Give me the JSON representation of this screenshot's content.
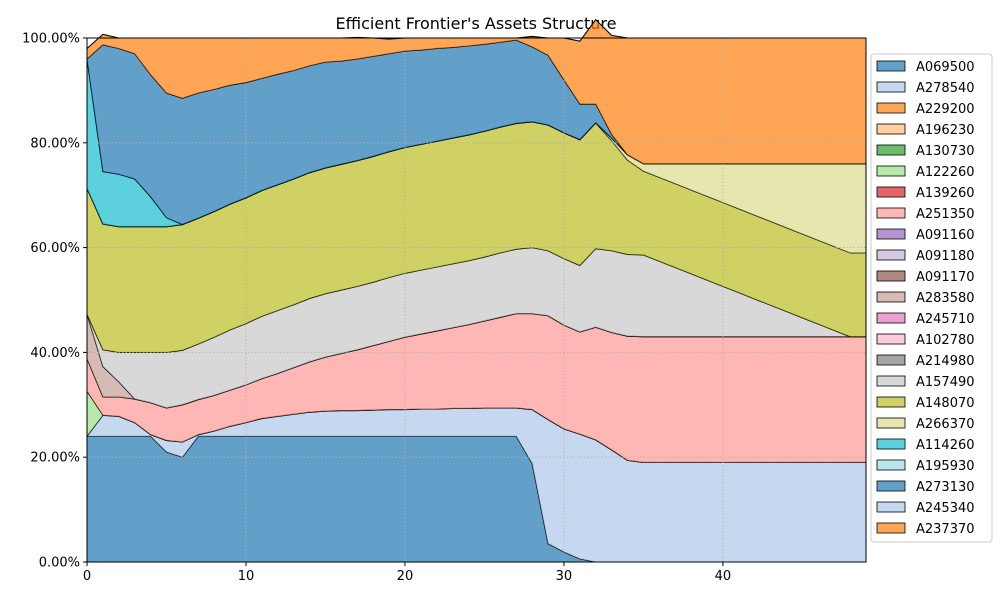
{
  "chart_data": {
    "type": "area",
    "stacked": true,
    "title": "Efficient Frontier's Assets Structure",
    "xlabel": "",
    "ylabel": "",
    "xlim": [
      0,
      49
    ],
    "ylim": [
      0,
      100
    ],
    "x_ticks": [
      0,
      10,
      20,
      30,
      40
    ],
    "y_ticks": [
      0,
      20,
      40,
      60,
      80,
      100
    ],
    "y_tick_labels": [
      "0.00%",
      "20.00%",
      "40.00%",
      "60.00%",
      "80.00%",
      "100.00%"
    ],
    "grid": true,
    "legend_position": "right",
    "x": [
      0,
      1,
      2,
      3,
      4,
      5,
      6,
      7,
      8,
      9,
      10,
      11,
      12,
      13,
      14,
      15,
      16,
      17,
      18,
      19,
      20,
      21,
      22,
      23,
      24,
      25,
      26,
      27,
      28,
      29,
      30,
      31,
      32,
      33,
      34,
      35,
      36,
      37,
      38,
      39,
      40,
      41,
      42,
      43,
      44,
      45,
      46,
      47,
      48,
      49
    ],
    "series": [
      {
        "name": "A069500",
        "color": "#1f77b4",
        "values": [
          24,
          24,
          24,
          24,
          24,
          21,
          20,
          24,
          24,
          24,
          24,
          24,
          24,
          24,
          24,
          24,
          24,
          24,
          24,
          24,
          24,
          24,
          24,
          24,
          24,
          24,
          24,
          24,
          18.8,
          3.5,
          1.9,
          0.6,
          0,
          0,
          0,
          0,
          0,
          0,
          0,
          0,
          0,
          0,
          0,
          0,
          0,
          0,
          0,
          0,
          0,
          0
        ]
      },
      {
        "name": "A278540",
        "color": "#aec7e8",
        "values": [
          0,
          4,
          3.8,
          2.6,
          0.3,
          2.2,
          2.9,
          0.3,
          1,
          1.9,
          2.6,
          3.4,
          3.8,
          4.2,
          4.6,
          4.8,
          4.9,
          4.9,
          5,
          5.1,
          5.1,
          5.2,
          5.2,
          5.3,
          5.3,
          5.4,
          5.4,
          5.4,
          10.3,
          23.7,
          23.5,
          23.8,
          23.3,
          21.4,
          19.4,
          19,
          19,
          19,
          19,
          19,
          19,
          19,
          19,
          19,
          19,
          19,
          19,
          19,
          19,
          19
        ]
      },
      {
        "name": "A229200",
        "color": "#ff7f0e",
        "values": [
          0,
          0,
          0,
          0,
          0,
          0,
          0,
          0,
          0,
          0,
          0,
          0,
          0,
          0,
          0,
          0,
          0,
          0,
          0,
          0,
          0,
          0,
          0,
          0,
          0,
          0,
          0,
          0,
          0,
          0,
          0,
          0,
          0,
          0,
          0,
          0,
          0,
          0,
          0,
          0,
          0,
          0,
          0,
          0,
          0,
          0,
          0,
          0,
          0,
          0
        ]
      },
      {
        "name": "A196230",
        "color": "#ffbb78",
        "values": [
          0,
          0,
          0,
          0,
          0,
          0,
          0,
          0,
          0,
          0,
          0,
          0,
          0,
          0,
          0,
          0,
          0,
          0,
          0,
          0,
          0,
          0,
          0,
          0,
          0,
          0,
          0,
          0,
          0,
          0,
          0,
          0,
          0,
          0,
          0,
          0,
          0,
          0,
          0,
          0,
          0,
          0,
          0,
          0,
          0,
          0,
          0,
          0,
          0,
          0
        ]
      },
      {
        "name": "A130730",
        "color": "#2ca02c",
        "values": [
          0,
          0,
          0,
          0,
          0,
          0,
          0,
          0,
          0,
          0,
          0,
          0,
          0,
          0,
          0,
          0,
          0,
          0,
          0,
          0,
          0,
          0,
          0,
          0,
          0,
          0,
          0,
          0,
          0,
          0,
          0,
          0,
          0,
          0,
          0,
          0,
          0,
          0,
          0,
          0,
          0,
          0,
          0,
          0,
          0,
          0,
          0,
          0,
          0,
          0
        ]
      },
      {
        "name": "A122260",
        "color": "#98df8a",
        "values": [
          8.6,
          0,
          0,
          0,
          0,
          0,
          0,
          0,
          0,
          0,
          0,
          0,
          0,
          0,
          0,
          0,
          0,
          0,
          0,
          0,
          0,
          0,
          0,
          0,
          0,
          0,
          0,
          0,
          0,
          0,
          0,
          0,
          0,
          0,
          0,
          0,
          0,
          0,
          0,
          0,
          0,
          0,
          0,
          0,
          0,
          0,
          0,
          0,
          0,
          0
        ]
      },
      {
        "name": "A139260",
        "color": "#d62728",
        "values": [
          0,
          0,
          0,
          0,
          0,
          0,
          0,
          0,
          0,
          0,
          0,
          0,
          0,
          0,
          0,
          0,
          0,
          0,
          0,
          0,
          0,
          0,
          0,
          0,
          0,
          0,
          0,
          0,
          0,
          0,
          0,
          0,
          0,
          0,
          0,
          0,
          0,
          0,
          0,
          0,
          0,
          0,
          0,
          0,
          0,
          0,
          0,
          0,
          0,
          0
        ]
      },
      {
        "name": "A251350",
        "color": "#ff9896",
        "values": [
          6.2,
          3.5,
          3.7,
          4.5,
          6.1,
          6.2,
          7.1,
          6.7,
          6.8,
          6.9,
          7.2,
          7.6,
          8.2,
          8.9,
          9.6,
          10.3,
          10.9,
          11.6,
          12.3,
          13,
          13.8,
          14.3,
          14.9,
          15.4,
          16,
          16.6,
          17.3,
          18,
          18.3,
          19.8,
          19.8,
          19.5,
          21.5,
          22.4,
          23.7,
          24,
          24,
          24,
          24,
          24,
          24,
          24,
          24,
          24,
          24,
          24,
          24,
          24,
          24,
          24
        ]
      },
      {
        "name": "A091160",
        "color": "#9467bd",
        "values": [
          0,
          0,
          0,
          0,
          0,
          0,
          0,
          0,
          0,
          0,
          0,
          0,
          0,
          0,
          0,
          0,
          0,
          0,
          0,
          0,
          0,
          0,
          0,
          0,
          0,
          0,
          0,
          0,
          0,
          0,
          0,
          0,
          0,
          0,
          0,
          0,
          0,
          0,
          0,
          0,
          0,
          0,
          0,
          0,
          0,
          0,
          0,
          0,
          0,
          0
        ]
      },
      {
        "name": "A091180",
        "color": "#c5b0d5",
        "values": [
          0,
          0,
          0,
          0,
          0,
          0,
          0,
          0,
          0,
          0,
          0,
          0,
          0,
          0,
          0,
          0,
          0,
          0,
          0,
          0,
          0,
          0,
          0,
          0,
          0,
          0,
          0,
          0,
          0,
          0,
          0,
          0,
          0,
          0,
          0,
          0,
          0,
          0,
          0,
          0,
          0,
          0,
          0,
          0,
          0,
          0,
          0,
          0,
          0,
          0
        ]
      },
      {
        "name": "A091170",
        "color": "#8c564b",
        "values": [
          0,
          0,
          0,
          0,
          0,
          0,
          0,
          0,
          0,
          0,
          0,
          0,
          0,
          0,
          0,
          0,
          0,
          0,
          0,
          0,
          0,
          0,
          0,
          0,
          0,
          0,
          0,
          0,
          0,
          0,
          0,
          0,
          0,
          0,
          0,
          0,
          0,
          0,
          0,
          0,
          0,
          0,
          0,
          0,
          0,
          0,
          0,
          0,
          0,
          0
        ]
      },
      {
        "name": "A283580",
        "color": "#c49c94",
        "values": [
          8.5,
          5.8,
          2.9,
          0,
          0,
          0,
          0,
          0,
          0,
          0,
          0,
          0,
          0,
          0,
          0,
          0,
          0,
          0,
          0,
          0,
          0,
          0,
          0,
          0,
          0,
          0,
          0,
          0,
          0,
          0,
          0,
          0,
          0,
          0,
          0,
          0,
          0,
          0,
          0,
          0,
          0,
          0,
          0,
          0,
          0,
          0,
          0,
          0,
          0,
          0
        ]
      },
      {
        "name": "A245710",
        "color": "#e377c2",
        "values": [
          0,
          0,
          0,
          0,
          0,
          0,
          0,
          0,
          0,
          0,
          0,
          0,
          0,
          0,
          0,
          0,
          0,
          0,
          0,
          0,
          0,
          0,
          0,
          0,
          0,
          0,
          0,
          0,
          0,
          0,
          0,
          0,
          0,
          0,
          0,
          0,
          0,
          0,
          0,
          0,
          0,
          0,
          0,
          0,
          0,
          0,
          0,
          0,
          0,
          0
        ]
      },
      {
        "name": "A102780",
        "color": "#f7b6d2",
        "values": [
          0,
          0,
          0,
          0,
          0,
          0,
          0,
          0,
          0,
          0,
          0,
          0,
          0,
          0,
          0,
          0,
          0,
          0,
          0,
          0,
          0,
          0,
          0,
          0,
          0,
          0,
          0,
          0,
          0,
          0,
          0,
          0,
          0,
          0,
          0,
          0,
          0,
          0,
          0,
          0,
          0,
          0,
          0,
          0,
          0,
          0,
          0,
          0,
          0,
          0
        ]
      },
      {
        "name": "A214980",
        "color": "#7f7f7f",
        "values": [
          0,
          0,
          0,
          0,
          0,
          0,
          0,
          0,
          0,
          0,
          0,
          0,
          0,
          0,
          0,
          0,
          0,
          0,
          0,
          0,
          0,
          0,
          0,
          0,
          0,
          0,
          0,
          0,
          0,
          0,
          0,
          0,
          0,
          0,
          0,
          0,
          0,
          0,
          0,
          0,
          0,
          0,
          0,
          0,
          0,
          0,
          0,
          0,
          0,
          0
        ]
      },
      {
        "name": "A157490",
        "color": "#c7c7c7",
        "values": [
          0,
          3.2,
          5.6,
          8.9,
          9.6,
          10.6,
          10.4,
          10.6,
          11.1,
          11.5,
          11.7,
          11.9,
          12,
          12,
          12.1,
          12.1,
          12.1,
          12.1,
          12.1,
          12.2,
          12.2,
          12.2,
          12.2,
          12.2,
          12.2,
          12.2,
          12.3,
          12.3,
          12.6,
          12.4,
          12.7,
          12.7,
          15,
          15.6,
          15.6,
          15.6,
          14.4,
          13.2,
          12,
          10.8,
          9.6,
          8.4,
          7.2,
          6,
          4.8,
          3.6,
          2.4,
          1.2,
          0,
          0
        ]
      },
      {
        "name": "A148070",
        "color": "#bcbd22",
        "values": [
          24,
          24,
          24,
          24,
          24,
          24,
          24,
          24,
          24,
          24,
          24,
          24,
          24,
          24,
          24,
          24,
          24,
          24,
          24,
          24,
          24,
          24,
          24,
          24,
          24,
          24,
          24,
          24,
          24,
          24,
          24,
          24,
          24,
          21,
          18,
          16,
          16,
          16,
          16,
          16,
          16,
          16,
          16,
          16,
          16,
          16,
          16,
          16,
          16,
          16
        ]
      },
      {
        "name": "A266370",
        "color": "#dbdb8d",
        "values": [
          0,
          0,
          0,
          0,
          0,
          0,
          0,
          0,
          0,
          0,
          0,
          0,
          0,
          0,
          0,
          0,
          0,
          0,
          0,
          0,
          0,
          0,
          0,
          0,
          0,
          0,
          0,
          0,
          0,
          0,
          0,
          0,
          0,
          0.5,
          1,
          1.4,
          2.6,
          3.8,
          5,
          6.2,
          7.4,
          8.6,
          9.8,
          11,
          12.2,
          13.4,
          14.6,
          15.8,
          17,
          17
        ]
      },
      {
        "name": "A114260",
        "color": "#17becf",
        "values": [
          24.7,
          10,
          10,
          9.1,
          5.7,
          1.7,
          0,
          0,
          0,
          0,
          0,
          0,
          0,
          0,
          0,
          0,
          0,
          0,
          0,
          0,
          0,
          0,
          0,
          0,
          0,
          0,
          0,
          0,
          0,
          0,
          0,
          0,
          0,
          0,
          0,
          0,
          0,
          0,
          0,
          0,
          0,
          0,
          0,
          0,
          0,
          0,
          0,
          0,
          0,
          0
        ]
      },
      {
        "name": "A195930",
        "color": "#9edae5",
        "values": [
          0,
          0,
          0,
          0,
          0,
          0,
          0,
          0,
          0,
          0,
          0,
          0,
          0,
          0,
          0,
          0,
          0,
          0,
          0,
          0,
          0,
          0,
          0,
          0,
          0,
          0,
          0,
          0,
          0,
          0,
          0,
          0,
          0,
          0,
          0,
          0,
          0,
          0,
          0,
          0,
          0,
          0,
          0,
          0,
          0,
          0,
          0,
          0,
          0,
          0
        ]
      },
      {
        "name": "A273130",
        "color": "#1f77b4",
        "values": [
          0,
          24.2,
          24,
          23.9,
          23.3,
          23.8,
          24.1,
          23.9,
          23.3,
          22.7,
          22,
          21.4,
          21.1,
          20.7,
          20.4,
          20.2,
          19.7,
          19.4,
          19.1,
          18.7,
          18.4,
          18,
          17.7,
          17.3,
          17,
          16.6,
          16.2,
          15.9,
          14.3,
          13.3,
          10.1,
          6.8,
          3.6,
          0.7,
          0,
          0,
          0,
          0,
          0,
          0,
          0,
          0,
          0,
          0,
          0,
          0,
          0,
          0,
          0,
          0
        ]
      },
      {
        "name": "A245340",
        "color": "#aec7e8",
        "values": [
          0,
          0,
          0,
          0,
          0,
          0,
          0,
          0,
          0,
          0,
          0,
          0,
          0,
          0,
          0,
          0,
          0,
          0,
          0,
          0,
          0,
          0,
          0,
          0,
          0,
          0,
          0,
          0,
          0,
          0,
          0,
          0,
          0,
          0,
          0,
          0,
          0,
          0,
          0,
          0,
          0,
          0,
          0,
          0,
          0,
          0,
          0,
          0,
          0,
          0
        ]
      },
      {
        "name": "A237370",
        "color": "#ff7f0e",
        "values": [
          2,
          2,
          2,
          3,
          7,
          10.5,
          11.5,
          10.5,
          9.8,
          9,
          8.5,
          7.7,
          6.9,
          6.2,
          5.3,
          4.6,
          4.4,
          4.1,
          3.5,
          2.8,
          2.5,
          2.3,
          2,
          1.8,
          1.5,
          1.2,
          0.8,
          0.4,
          2,
          3.3,
          8,
          12,
          16.1,
          18.9,
          22.3,
          24,
          24,
          24,
          24,
          24,
          24,
          24,
          24,
          24,
          24,
          24,
          24,
          24,
          24,
          24
        ]
      }
    ]
  }
}
